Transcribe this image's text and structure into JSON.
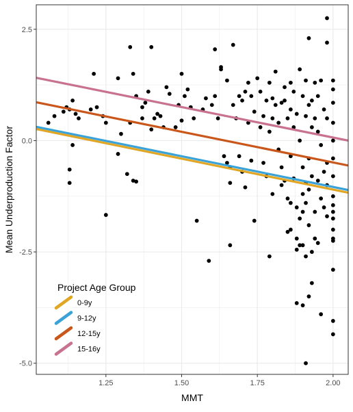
{
  "chart_data": {
    "type": "scatter",
    "xlabel": "MMT",
    "ylabel": "Mean Underproduction Factor",
    "xlim": [
      1.02,
      2.05
    ],
    "ylim": [
      -5.25,
      3.05
    ],
    "x_ticks": [
      1.25,
      1.5,
      1.75,
      2.0
    ],
    "x_tick_labels": [
      "1.25",
      "1.50",
      "1.75",
      "2.00"
    ],
    "y_ticks": [
      -5.0,
      -2.5,
      0.0,
      2.5
    ],
    "y_tick_labels": [
      "-5.0",
      "-2.5",
      "0.0",
      "2.5"
    ],
    "grid": true,
    "legend": {
      "title": "Project Age Group",
      "position": "bottom-left",
      "entries": [
        "0-9y",
        "9-12y",
        "12-15y",
        "15-16y"
      ]
    },
    "colors": {
      "points": "#000000",
      "panel_border": "#333333",
      "grid": "#ebebeb",
      "series": [
        "#e1a624",
        "#3ba2d8",
        "#c9571b",
        "#c8728e"
      ]
    },
    "series": [
      {
        "name": "0-9y",
        "line": {
          "x": [
            1.02,
            2.05
          ],
          "y": [
            0.26,
            -1.17
          ]
        }
      },
      {
        "name": "9-12y",
        "line": {
          "x": [
            1.02,
            2.05
          ],
          "y": [
            0.31,
            -1.11
          ]
        }
      },
      {
        "name": "12-15y",
        "line": {
          "x": [
            1.02,
            2.05
          ],
          "y": [
            0.86,
            -0.56
          ]
        }
      },
      {
        "name": "15-16y",
        "line": {
          "x": [
            1.02,
            2.05
          ],
          "y": [
            1.41,
            0.0
          ]
        }
      }
    ],
    "points": [
      [
        1.06,
        0.4
      ],
      [
        1.08,
        0.55
      ],
      [
        1.11,
        0.65
      ],
      [
        1.12,
        0.75
      ],
      [
        1.13,
        0.7
      ],
      [
        1.13,
        -0.65
      ],
      [
        1.13,
        -0.95
      ],
      [
        1.14,
        -0.1
      ],
      [
        1.14,
        0.9
      ],
      [
        1.15,
        0.6
      ],
      [
        1.16,
        0.5
      ],
      [
        1.2,
        0.7
      ],
      [
        1.21,
        1.5
      ],
      [
        1.22,
        0.75
      ],
      [
        1.24,
        0.55
      ],
      [
        1.25,
        0.4
      ],
      [
        1.25,
        -1.67
      ],
      [
        1.29,
        -0.3
      ],
      [
        1.29,
        1.4
      ],
      [
        1.3,
        0.15
      ],
      [
        1.32,
        -0.75
      ],
      [
        1.33,
        0.4
      ],
      [
        1.33,
        2.1
      ],
      [
        1.34,
        -0.9
      ],
      [
        1.34,
        1.5
      ],
      [
        1.35,
        -0.92
      ],
      [
        1.35,
        1.0
      ],
      [
        1.37,
        0.5
      ],
      [
        1.37,
        0.75
      ],
      [
        1.38,
        0.85
      ],
      [
        1.39,
        1.1
      ],
      [
        1.4,
        0.25
      ],
      [
        1.4,
        2.1
      ],
      [
        1.41,
        0.5
      ],
      [
        1.42,
        0.6
      ],
      [
        1.43,
        0.55
      ],
      [
        1.44,
        0.3
      ],
      [
        1.45,
        1.2
      ],
      [
        1.46,
        1.05
      ],
      [
        1.48,
        0.3
      ],
      [
        1.49,
        0.8
      ],
      [
        1.5,
        0.45
      ],
      [
        1.5,
        1.5
      ],
      [
        1.51,
        1.0
      ],
      [
        1.52,
        1.15
      ],
      [
        1.53,
        0.75
      ],
      [
        1.54,
        0.5
      ],
      [
        1.55,
        -1.8
      ],
      [
        1.57,
        0.7
      ],
      [
        1.58,
        0.95
      ],
      [
        1.59,
        -2.7
      ],
      [
        1.6,
        0.8
      ],
      [
        1.61,
        1.0
      ],
      [
        1.61,
        2.05
      ],
      [
        1.62,
        0.5
      ],
      [
        1.63,
        1.6
      ],
      [
        1.63,
        1.65
      ],
      [
        1.64,
        -0.35
      ],
      [
        1.65,
        1.35
      ],
      [
        1.65,
        -0.5
      ],
      [
        1.66,
        -0.6
      ],
      [
        1.66,
        -0.95
      ],
      [
        1.66,
        -2.35
      ],
      [
        1.67,
        0.8
      ],
      [
        1.67,
        2.15
      ],
      [
        1.68,
        0.5
      ],
      [
        1.69,
        -0.35
      ],
      [
        1.69,
        1.0
      ],
      [
        1.7,
        0.9
      ],
      [
        1.7,
        -0.7
      ],
      [
        1.71,
        -1.05
      ],
      [
        1.71,
        1.1
      ],
      [
        1.72,
        1.3
      ],
      [
        1.72,
        0.4
      ],
      [
        1.73,
        1.0
      ],
      [
        1.73,
        -0.45
      ],
      [
        1.74,
        0.65
      ],
      [
        1.74,
        -1.8
      ],
      [
        1.75,
        1.4
      ],
      [
        1.76,
        0.3
      ],
      [
        1.76,
        1.1
      ],
      [
        1.77,
        0.55
      ],
      [
        1.77,
        -0.5
      ],
      [
        1.78,
        0.9
      ],
      [
        1.78,
        -0.8
      ],
      [
        1.79,
        -2.6
      ],
      [
        1.79,
        1.3
      ],
      [
        1.79,
        0.2
      ],
      [
        1.8,
        0.95
      ],
      [
        1.8,
        0.5
      ],
      [
        1.8,
        -1.2
      ],
      [
        1.81,
        1.55
      ],
      [
        1.81,
        0.8
      ],
      [
        1.82,
        0.4
      ],
      [
        1.82,
        -0.2
      ],
      [
        1.83,
        0.85
      ],
      [
        1.83,
        -0.6
      ],
      [
        1.83,
        -1.0
      ],
      [
        1.84,
        0.9
      ],
      [
        1.84,
        1.2
      ],
      [
        1.84,
        -0.9
      ],
      [
        1.85,
        0.5
      ],
      [
        1.85,
        -1.3
      ],
      [
        1.85,
        -2.05
      ],
      [
        1.86,
        1.3
      ],
      [
        1.86,
        0.7
      ],
      [
        1.86,
        -0.35
      ],
      [
        1.86,
        -1.4
      ],
      [
        1.86,
        -2.0
      ],
      [
        1.87,
        0.3
      ],
      [
        1.87,
        1.1
      ],
      [
        1.87,
        -0.85
      ],
      [
        1.88,
        0.6
      ],
      [
        1.88,
        -1.5
      ],
      [
        1.88,
        -2.2
      ],
      [
        1.88,
        -2.45
      ],
      [
        1.88,
        -3.65
      ],
      [
        1.89,
        1.6
      ],
      [
        1.89,
        0.0
      ],
      [
        1.89,
        -1.75
      ],
      [
        1.89,
        -2.35
      ],
      [
        1.9,
        1.0
      ],
      [
        1.9,
        -0.6
      ],
      [
        1.9,
        -1.2
      ],
      [
        1.9,
        -1.6
      ],
      [
        1.9,
        -2.35
      ],
      [
        1.9,
        -3.7
      ],
      [
        1.91,
        0.55
      ],
      [
        1.91,
        1.35
      ],
      [
        1.91,
        -0.95
      ],
      [
        1.91,
        -1.4
      ],
      [
        1.91,
        -2.6
      ],
      [
        1.91,
        -5.0
      ],
      [
        1.92,
        2.3
      ],
      [
        1.92,
        0.8
      ],
      [
        1.92,
        -0.4
      ],
      [
        1.92,
        -1.1
      ],
      [
        1.92,
        -1.9
      ],
      [
        1.92,
        -3.5
      ],
      [
        1.93,
        0.9
      ],
      [
        1.93,
        0.3
      ],
      [
        1.93,
        -0.8
      ],
      [
        1.93,
        -2.5
      ],
      [
        1.93,
        -3.2
      ],
      [
        1.94,
        1.3
      ],
      [
        1.94,
        0.5
      ],
      [
        1.94,
        -1.6
      ],
      [
        1.94,
        -2.2
      ],
      [
        1.95,
        1.0
      ],
      [
        1.95,
        0.2
      ],
      [
        1.95,
        -0.9
      ],
      [
        1.95,
        -2.3
      ],
      [
        1.96,
        1.35
      ],
      [
        1.96,
        -0.1
      ],
      [
        1.96,
        -1.3
      ],
      [
        1.96,
        -3.9
      ],
      [
        1.97,
        0.7
      ],
      [
        1.97,
        -0.7
      ],
      [
        1.97,
        -1.5
      ],
      [
        1.98,
        2.75
      ],
      [
        1.98,
        2.2
      ],
      [
        1.98,
        0.5
      ],
      [
        1.98,
        -0.5
      ],
      [
        1.98,
        -1.0
      ],
      [
        1.98,
        -1.7
      ],
      [
        2.0,
        1.35
      ],
      [
        2.0,
        1.15
      ],
      [
        2.0,
        0.85
      ],
      [
        2.0,
        0.4
      ],
      [
        2.0,
        0.0
      ],
      [
        2.0,
        -0.4
      ],
      [
        2.0,
        -0.8
      ],
      [
        2.0,
        -1.25
      ],
      [
        2.0,
        -1.45
      ],
      [
        2.0,
        -1.6
      ],
      [
        2.0,
        -1.75
      ],
      [
        2.0,
        -2.0
      ],
      [
        2.0,
        -2.2
      ],
      [
        2.0,
        -2.25
      ],
      [
        2.0,
        -2.9
      ],
      [
        2.0,
        -4.05
      ],
      [
        2.0,
        -4.35
      ]
    ]
  }
}
